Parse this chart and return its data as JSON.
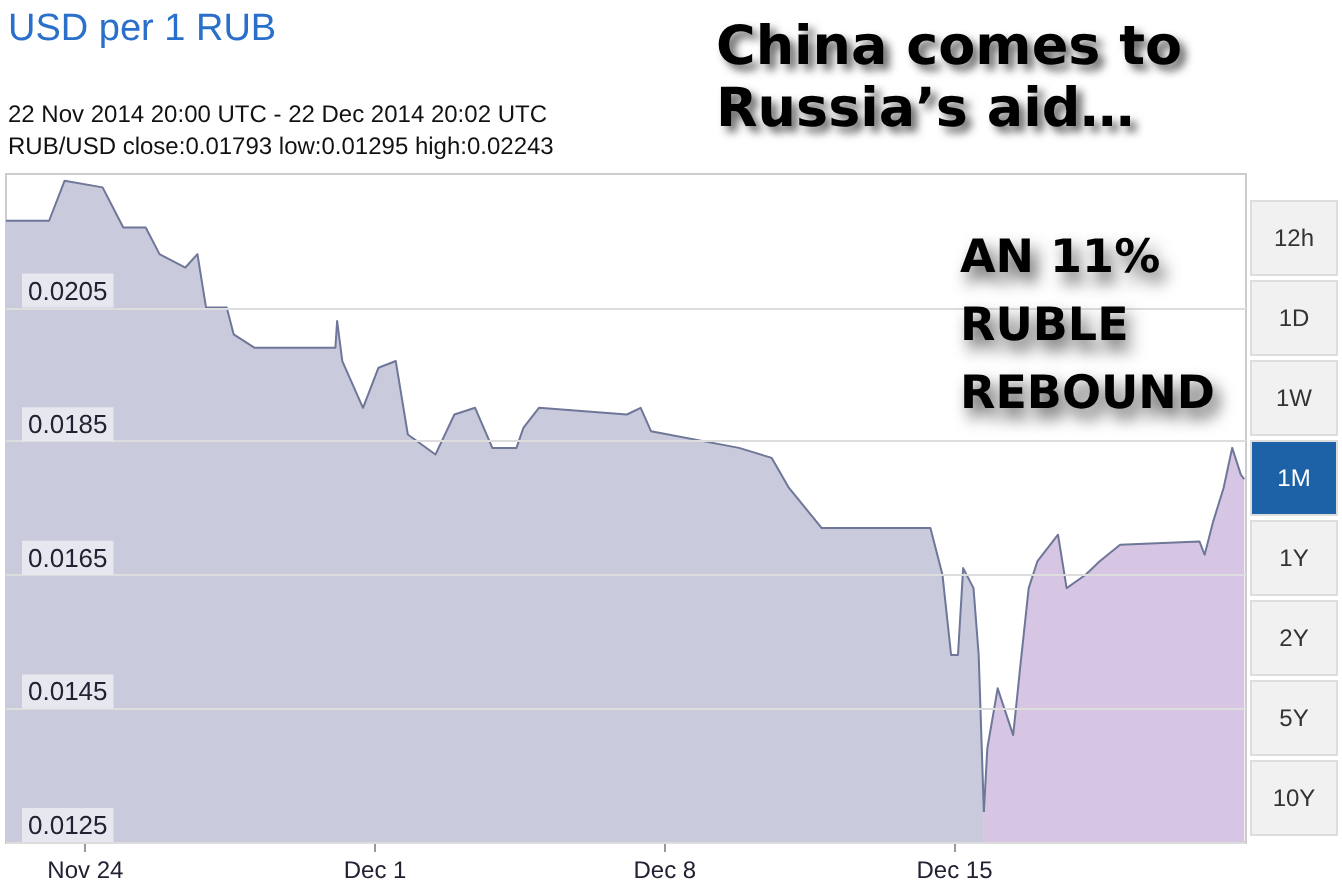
{
  "chart_data": {
    "type": "area",
    "title": "USD per 1 RUB",
    "subtitle": "22 Nov 2014 20:00 UTC - 22 Dec 2014 20:02 UTC",
    "annotations": [
      "RUB/USD close:0.01793 low:0.01295 high:0.02243",
      "China comes to Russia’s aid…",
      "AN 11% RUBLE REBOUND",
      "12h",
      "1D",
      "1W",
      "1M",
      "1Y",
      "2Y",
      "5Y",
      "10Y"
    ],
    "series": [
      {
        "color": "#c9cbdc",
        "x": [
          "2014-11-22T02:00",
          "2014-11-23T03:00",
          "2014-11-23T12:00",
          "2014-11-24T10:00",
          "2014-11-24T22:00",
          "2014-11-25T11:00",
          "2014-11-25T19:00",
          "2014-11-26T10:00",
          "2014-11-26T17:00",
          "2014-11-26T22:00",
          "2014-11-27T10:00",
          "2014-11-27T14:00",
          "2014-11-28T02:00",
          "2014-11-30T01:00",
          "2014-11-30T02:00",
          "2014-11-30T05:00",
          "2014-11-30T17:00",
          "2014-12-01T02:00",
          "2014-12-01T12:00",
          "2014-12-01T19:00",
          "2014-12-02T11:00",
          "2014-12-02T22:00",
          "2014-12-03T10:00",
          "2014-12-03T20:00",
          "2014-12-04T10:00",
          "2014-12-04T14:00",
          "2014-12-04T23:00",
          "2014-12-07T02:00",
          "2014-12-07T10:00",
          "2014-12-07T16:00",
          "2014-12-09T19:00",
          "2014-12-10T14:00",
          "2014-12-11T00:00",
          "2014-12-11T19:00",
          "2014-12-14T10:00",
          "2014-12-14T17:00",
          "2014-12-14T22:00",
          "2014-12-15T02:00",
          "2014-12-15T05:00",
          "2014-12-15T11:00",
          "2014-12-15T14:00",
          "2014-12-15T17:00"
        ],
        "values": [
          0.0218,
          0.0218,
          0.0224,
          0.0223,
          0.0217,
          0.0217,
          0.0213,
          0.0211,
          0.0213,
          0.0205,
          0.0205,
          0.0201,
          0.0199,
          0.0199,
          0.0203,
          0.0197,
          0.019,
          0.0196,
          0.0197,
          0.0186,
          0.0183,
          0.0189,
          0.019,
          0.0184,
          0.0184,
          0.0187,
          0.019,
          0.0189,
          0.019,
          0.01865,
          0.0184,
          0.01825,
          0.0178,
          0.0172,
          0.0172,
          0.0165,
          0.0153,
          0.0153,
          0.0166,
          0.0163,
          0.0153,
          0.01295
        ]
      },
      {
        "color": "#d6c6e4",
        "x": [
          "2014-12-15T17:00",
          "2014-12-15T19:00",
          "2014-12-16T01:00",
          "2014-12-16T10:00",
          "2014-12-16T14:00",
          "2014-12-16T19:00",
          "2014-12-17T00:00",
          "2014-12-17T12:00",
          "2014-12-17T17:00",
          "2014-12-18T04:00",
          "2014-12-18T12:00",
          "2014-12-19T00:00",
          "2014-12-20T22:00",
          "2014-12-21T01:00",
          "2014-12-21T06:00",
          "2014-12-21T12:00",
          "2014-12-21T17:00",
          "2014-12-21T22:00",
          "2014-12-22T00:00"
        ],
        "values": [
          0.01295,
          0.0139,
          0.0148,
          0.0141,
          0.0151,
          0.0163,
          0.0167,
          0.0171,
          0.0163,
          0.0165,
          0.0167,
          0.01695,
          0.017,
          0.0168,
          0.0173,
          0.0178,
          0.0184,
          0.018,
          0.01793
        ]
      }
    ],
    "xlim": [
      "2014-11-22T02:00",
      "2014-12-22T01:00"
    ],
    "xticks": [
      {
        "value": "2014-11-24",
        "label": "Nov 24"
      },
      {
        "value": "2014-12-01",
        "label": "Dec 1"
      },
      {
        "value": "2014-12-08",
        "label": "Dec 8"
      },
      {
        "value": "2014-12-15",
        "label": "Dec 15"
      }
    ],
    "ylim": [
      0.0125,
      0.0225
    ],
    "yticks": [
      0.0125,
      0.0145,
      0.0165,
      0.0185,
      0.0205
    ],
    "grid": "y",
    "marker": "none",
    "line_style": "solid"
  }
}
